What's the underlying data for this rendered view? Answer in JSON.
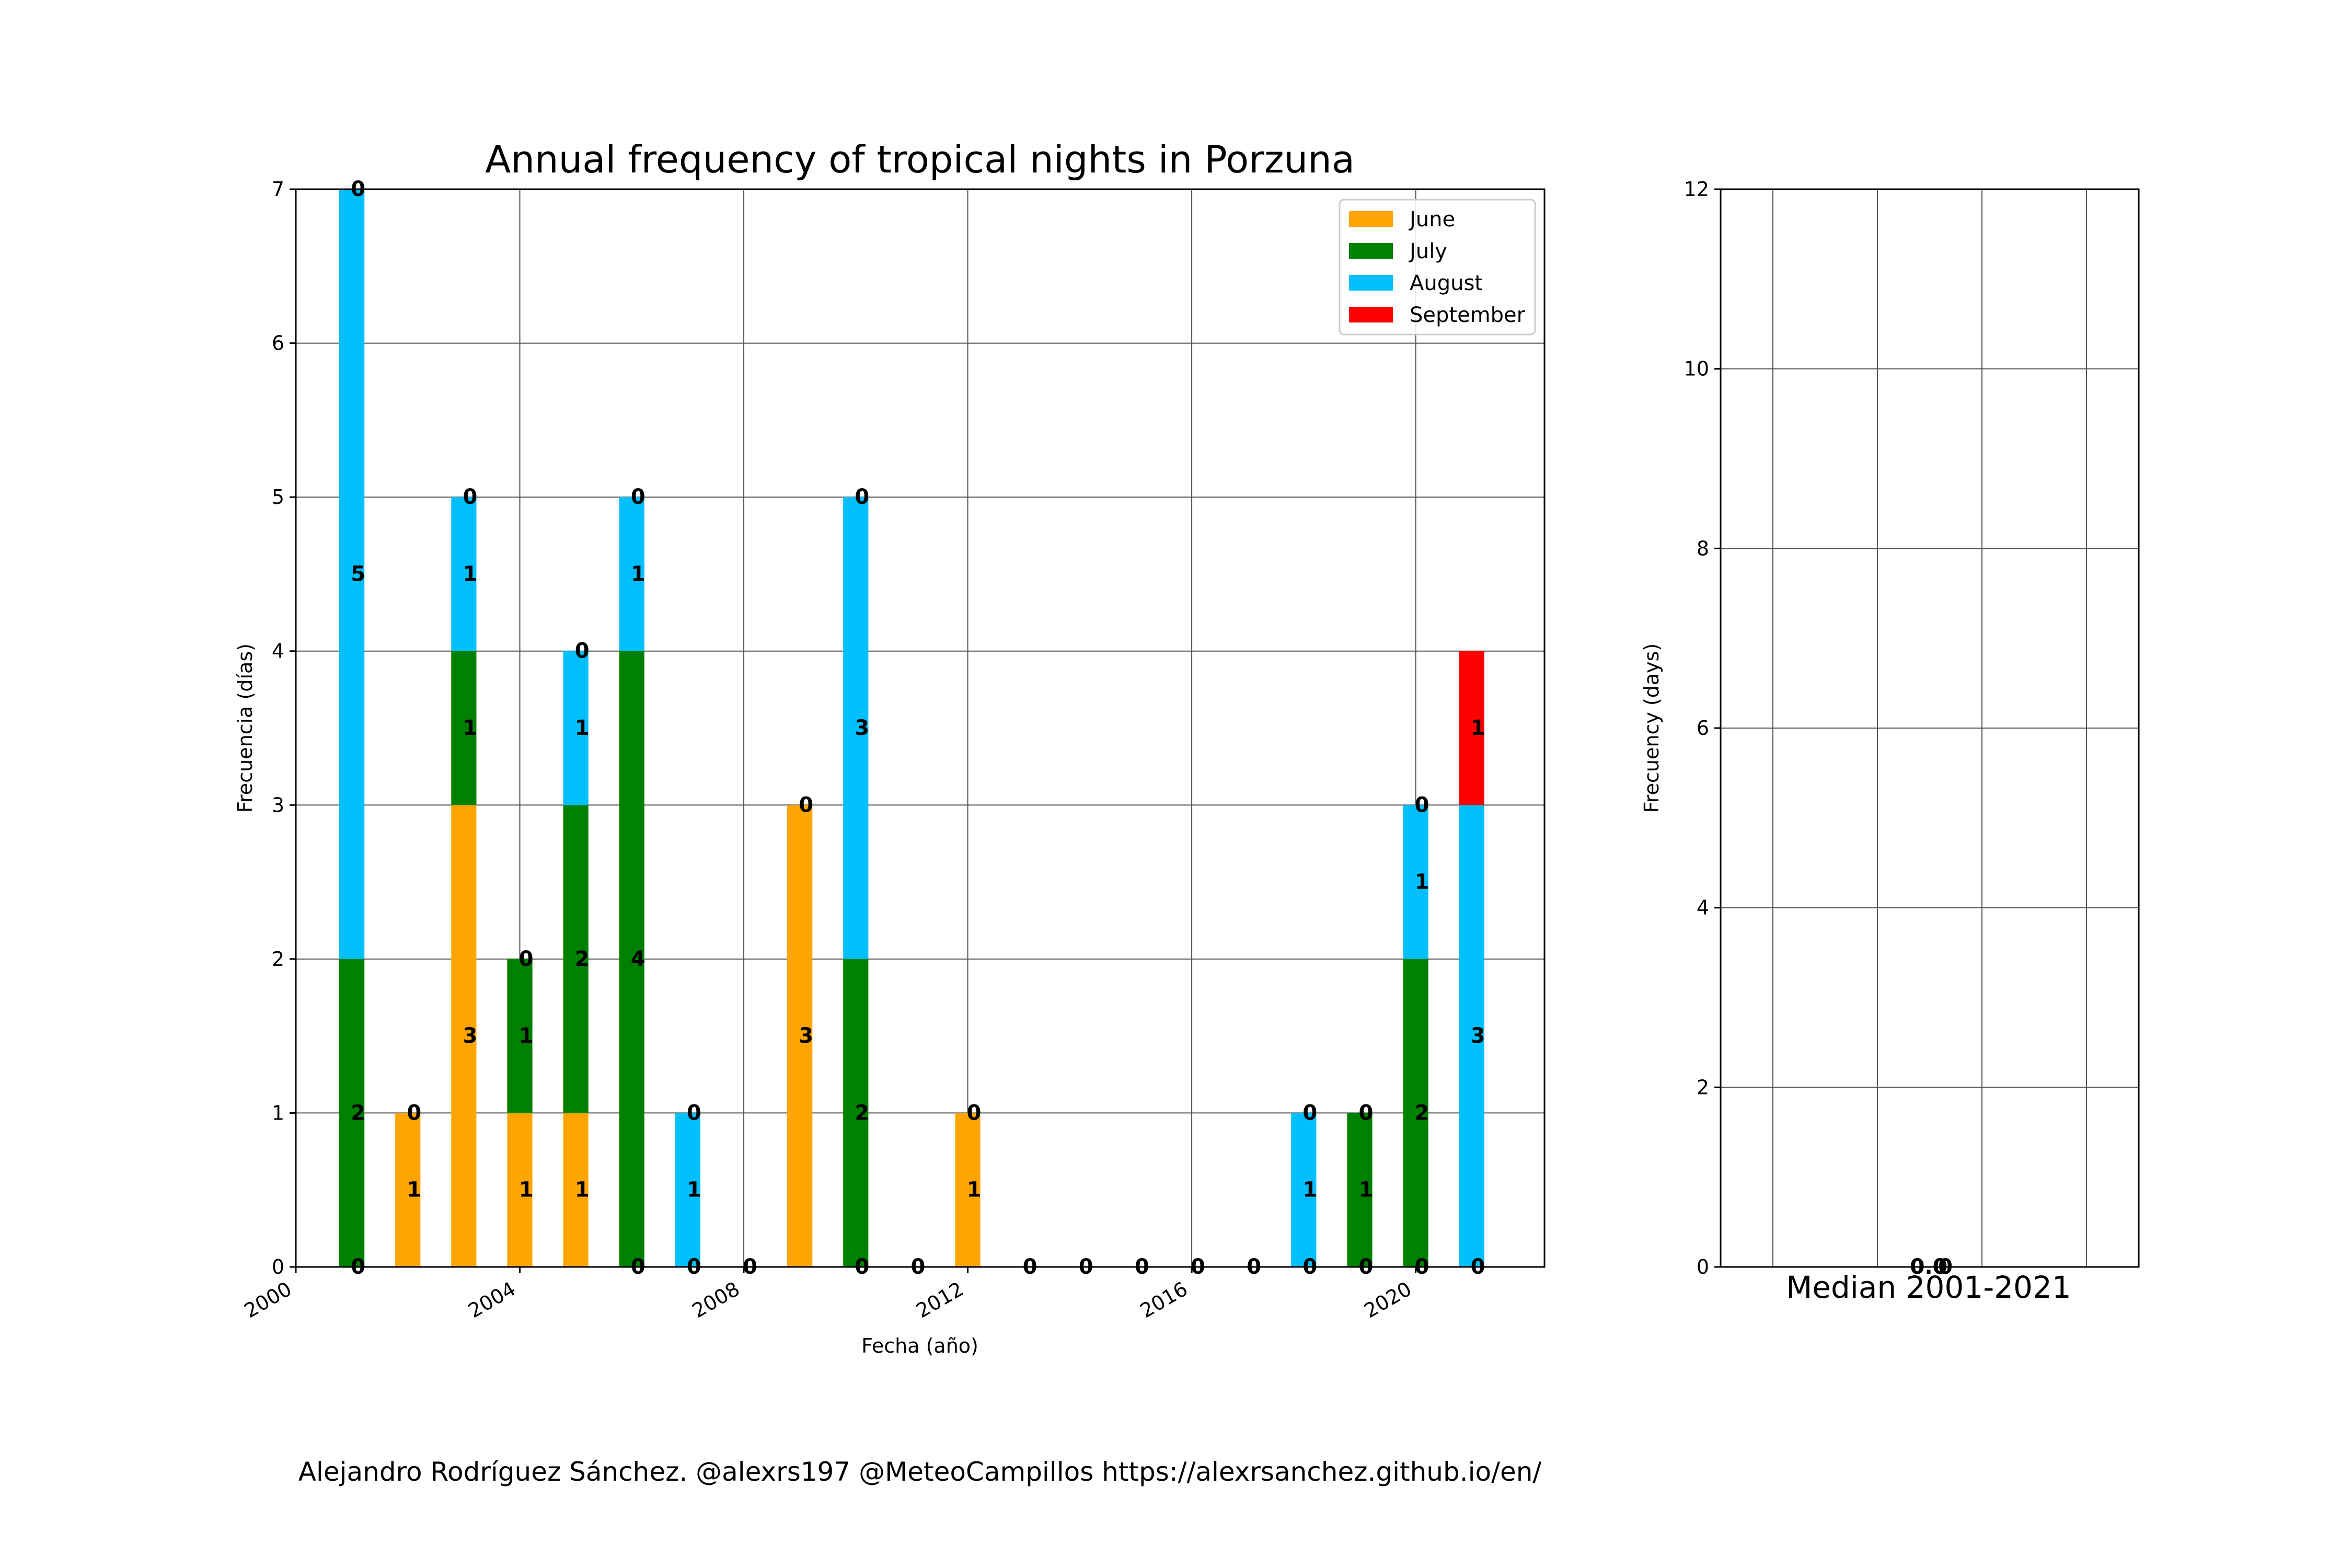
{
  "chart_data": [
    {
      "type": "bar",
      "stacked": true,
      "title": "Annual frequency of tropical nights in Porzuna",
      "xlabel": "Fecha (año)",
      "ylabel": "Frecuencia (días)",
      "xlim": [
        2000,
        2022.3
      ],
      "ylim": [
        0,
        7
      ],
      "xticks": [
        "2000",
        "2004",
        "2008",
        "2012",
        "2016",
        "2020"
      ],
      "yticks": [
        "0",
        "1",
        "2",
        "3",
        "4",
        "5",
        "6",
        "7"
      ],
      "grid": true,
      "legend_position": "top-right",
      "x": [
        2001,
        2002,
        2003,
        2004,
        2005,
        2006,
        2007,
        2008,
        2009,
        2010,
        2011,
        2012,
        2013,
        2014,
        2015,
        2016,
        2017,
        2018,
        2019,
        2020,
        2021
      ],
      "series": [
        {
          "name": "June",
          "color": "#ffa500",
          "values": [
            0,
            1,
            3,
            1,
            1,
            0,
            0,
            0,
            3,
            0,
            0,
            1,
            0,
            0,
            0,
            0,
            0,
            0,
            0,
            0,
            0
          ]
        },
        {
          "name": "July",
          "color": "#008000",
          "values": [
            2,
            0,
            1,
            1,
            2,
            4,
            0,
            0,
            0,
            2,
            0,
            0,
            0,
            0,
            0,
            0,
            0,
            0,
            1,
            2,
            0
          ]
        },
        {
          "name": "August",
          "color": "#00bfff",
          "values": [
            5,
            0,
            1,
            0,
            1,
            1,
            1,
            0,
            0,
            3,
            0,
            0,
            0,
            0,
            0,
            0,
            0,
            1,
            0,
            1,
            3
          ]
        },
        {
          "name": "September",
          "color": "#ff0000",
          "values": [
            0,
            0,
            0,
            0,
            0,
            0,
            0,
            0,
            0,
            0,
            0,
            0,
            0,
            0,
            0,
            0,
            0,
            0,
            0,
            0,
            1
          ]
        }
      ],
      "bar_labels": [
        [
          "0",
          "2",
          "5",
          "0"
        ],
        [
          "1",
          "0"
        ],
        [
          "3",
          "1",
          "1",
          "0"
        ],
        [
          "1",
          "1",
          "0"
        ],
        [
          "1",
          "2",
          "1",
          "0"
        ],
        [
          "0",
          "4",
          "1",
          "0"
        ],
        [
          "0",
          "1",
          "0"
        ],
        [
          "0"
        ],
        [
          "3",
          "0"
        ],
        [
          "0",
          "2",
          "3",
          "0"
        ],
        [
          "0"
        ],
        [
          "1",
          "0"
        ],
        [
          "0"
        ],
        [
          "0"
        ],
        [
          "0"
        ],
        [
          "0"
        ],
        [
          "0"
        ],
        [
          "0",
          "1",
          "0"
        ],
        [
          "0",
          "1",
          "0"
        ],
        [
          "0",
          "2",
          "1",
          "0"
        ],
        [
          "0",
          "3",
          "1"
        ]
      ]
    },
    {
      "type": "bar",
      "xlabel": "Median 2001-2021",
      "ylabel": "Frecuency (days)",
      "ylim": [
        0,
        12
      ],
      "yticks": [
        "0",
        "2",
        "4",
        "6",
        "8",
        "10",
        "12"
      ],
      "grid": true,
      "values": [
        0,
        0,
        0,
        0
      ],
      "labels": [
        "0",
        "0.0",
        "0",
        "0"
      ]
    }
  ],
  "credit": "Alejandro Rodríguez Sánchez. @alexrs197 @MeteoCampillos   https://alexrsanchez.github.io/en/"
}
